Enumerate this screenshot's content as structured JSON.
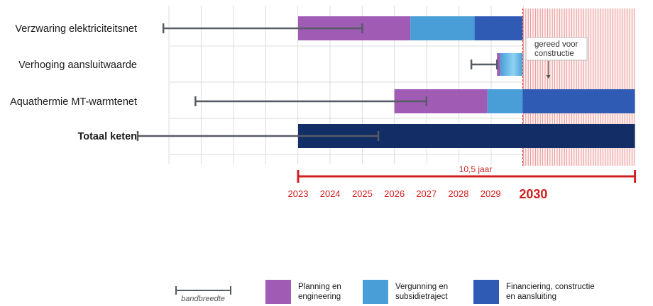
{
  "chart_data": {
    "type": "bar",
    "orientation": "horizontal",
    "x_axis": {
      "ticks": [
        {
          "year": 2023,
          "label": "2023"
        },
        {
          "year": 2024,
          "label": "2024"
        },
        {
          "year": 2025,
          "label": "2025"
        },
        {
          "year": 2026,
          "label": "2026"
        },
        {
          "year": 2027,
          "label": "2027"
        },
        {
          "year": 2028,
          "label": "2028"
        },
        {
          "year": 2029,
          "label": "2029"
        },
        {
          "year": 2030,
          "label": "2030",
          "emphasis": true
        }
      ]
    },
    "duration": {
      "label": "10,5 jaar",
      "start": 2023,
      "end": 2033.5
    },
    "hatched_region": {
      "start": 2030,
      "end": 2033.5
    },
    "annotation": {
      "lines": [
        "gereed voor",
        "constructie"
      ],
      "points_to": 2030.8
    },
    "rows": [
      {
        "label": "Verzwaring elektriciteitsnet",
        "bold": false,
        "segments": [
          {
            "phase": "planning",
            "start": 2023,
            "end": 2026.5
          },
          {
            "phase": "vergunning",
            "start": 2026.5,
            "end": 2028.5
          },
          {
            "phase": "financiering",
            "start": 2028.5,
            "end": 2030
          }
        ],
        "band": {
          "start": 2018.8,
          "end": 2025
        }
      },
      {
        "label": "Verhoging aansluitwaarde",
        "bold": false,
        "segments": [
          {
            "phase": "planning",
            "start": 2029.2,
            "end": 2029.3
          },
          {
            "phase": "vergunning",
            "start": 2029.3,
            "end": 2030
          }
        ],
        "band": {
          "start": 2028.4,
          "end": 2029.2
        }
      },
      {
        "label": "Aquathermie MT-warmtenet",
        "bold": false,
        "segments": [
          {
            "phase": "planning",
            "start": 2026,
            "end": 2028.9
          },
          {
            "phase": "vergunning",
            "start": 2028.9,
            "end": 2030
          },
          {
            "phase": "financiering",
            "start": 2030,
            "end": 2033.5
          }
        ],
        "band": {
          "start": 2019.8,
          "end": 2027
        }
      },
      {
        "label": "Totaal keten",
        "bold": true,
        "segments": [
          {
            "phase": "totaal",
            "start": 2023,
            "end": 2033.5
          }
        ],
        "band": {
          "start": 2018,
          "end": 2025.5
        }
      }
    ],
    "phases": {
      "planning": {
        "color": "#a05bb5",
        "lines": [
          "Planning en",
          "engineering"
        ]
      },
      "vergunning": {
        "color": "#4a9ed8",
        "lines": [
          "Vergunning en",
          "subsidietraject"
        ]
      },
      "financiering": {
        "color": "#2f5bb5",
        "lines": [
          "Financiering, constructie",
          "en aansluiting"
        ]
      },
      "totaal": {
        "color": "#132e66"
      }
    },
    "legend": {
      "band_label": "bandbreedte",
      "order": [
        "planning",
        "vergunning",
        "financiering"
      ],
      "placement": "bottom"
    },
    "grid": true
  }
}
